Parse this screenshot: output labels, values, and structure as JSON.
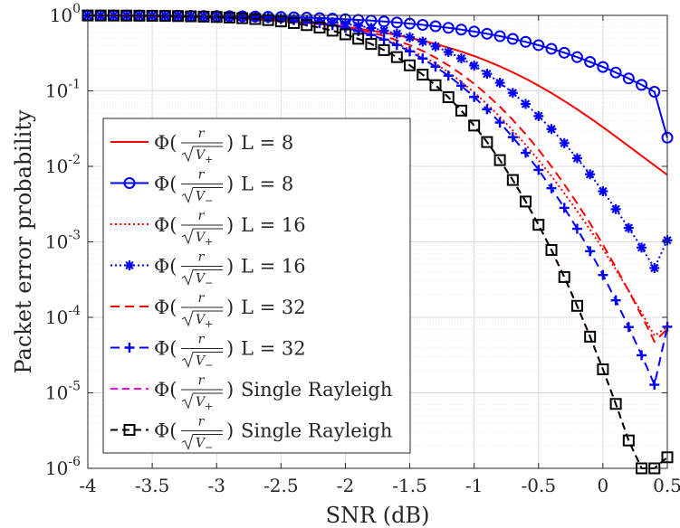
{
  "chart_data": {
    "type": "line",
    "xlabel": "SNR (dB)",
    "ylabel": "Packet error probability",
    "xlim": [
      -4,
      0.5
    ],
    "ylim": [
      1e-06,
      1
    ],
    "yscale": "log",
    "grid": true,
    "legend_position": "bottom-left",
    "x_ticks": [
      -4,
      -3.5,
      -3,
      -2.5,
      -2,
      -1.5,
      -1,
      -0.5,
      0,
      0.5
    ],
    "x_tick_labels": [
      "-4",
      "-3.5",
      "-3",
      "-2.5",
      "-2",
      "-1.5",
      "-1",
      "-0.5",
      "0",
      "0.5"
    ],
    "y_ticks": [
      1e-06,
      1e-05,
      0.0001,
      0.001,
      0.01,
      0.1,
      1
    ],
    "y_tick_labels": [
      {
        "base": "10",
        "exp": "-6"
      },
      {
        "base": "10",
        "exp": "-5"
      },
      {
        "base": "10",
        "exp": "-4"
      },
      {
        "base": "10",
        "exp": "-3"
      },
      {
        "base": "10",
        "exp": "-2"
      },
      {
        "base": "10",
        "exp": "-1"
      },
      {
        "base": "10",
        "exp": "0"
      }
    ],
    "x": [
      -4.0,
      -3.9,
      -3.8,
      -3.7,
      -3.6,
      -3.5,
      -3.4,
      -3.3,
      -3.2,
      -3.1,
      -3.0,
      -2.9,
      -2.8,
      -2.7,
      -2.6,
      -2.5,
      -2.4,
      -2.3,
      -2.2,
      -2.1,
      -2.0,
      -1.9,
      -1.8,
      -1.7,
      -1.6,
      -1.5,
      -1.4,
      -1.3,
      -1.2,
      -1.1,
      -1.0,
      -0.9,
      -0.8,
      -0.7,
      -0.6,
      -0.5,
      -0.4,
      -0.3,
      -0.2,
      -0.1,
      0.0,
      0.1,
      0.2,
      0.3,
      0.4,
      0.5
    ],
    "series": [
      {
        "name": "Φ(r/√V₊) L = 8",
        "label_parts": [
          "+",
          "L = 8"
        ],
        "color": "#ff0000",
        "dash": "",
        "marker": "none",
        "values": [
          0.99,
          0.988,
          0.985,
          0.982,
          0.978,
          0.973,
          0.967,
          0.96,
          0.952,
          0.942,
          0.931,
          0.918,
          0.903,
          0.886,
          0.867,
          0.846,
          0.822,
          0.796,
          0.767,
          0.736,
          0.703,
          0.667,
          0.629,
          0.589,
          0.548,
          0.505,
          0.462,
          0.418,
          0.374,
          0.331,
          0.289,
          0.249,
          0.211,
          0.176,
          0.145,
          0.117,
          0.0935,
          0.0735,
          0.057,
          0.0436,
          0.033,
          0.0248,
          0.0185,
          0.0138,
          0.0103,
          0.0077
        ]
      },
      {
        "name": "Φ(r/√V₋) L = 8",
        "label_parts": [
          "−",
          "L = 8"
        ],
        "color": "#0000ff",
        "dash": "",
        "marker": "circle",
        "values": [
          0.998,
          0.997,
          0.996,
          0.995,
          0.994,
          0.993,
          0.991,
          0.989,
          0.987,
          0.984,
          0.981,
          0.977,
          0.972,
          0.967,
          0.96,
          0.952,
          0.943,
          0.932,
          0.92,
          0.906,
          0.89,
          0.872,
          0.852,
          0.83,
          0.805,
          0.778,
          0.749,
          0.718,
          0.684,
          0.648,
          0.61,
          0.571,
          0.53,
          0.488,
          0.446,
          0.403,
          0.361,
          0.32,
          0.28,
          0.242,
          0.207,
          0.175,
          0.146,
          0.12,
          0.0972,
          0.024
        ]
      },
      {
        "name": "Φ(r/√V₊) L = 16",
        "label_parts": [
          "+",
          "L = 16"
        ],
        "color": "#ff0000",
        "dash": "2,3",
        "marker": "none",
        "values": [
          0.996,
          0.995,
          0.994,
          0.992,
          0.99,
          0.987,
          0.983,
          0.979,
          0.973,
          0.966,
          0.957,
          0.946,
          0.932,
          0.915,
          0.894,
          0.87,
          0.84,
          0.806,
          0.766,
          0.72,
          0.669,
          0.612,
          0.551,
          0.486,
          0.42,
          0.353,
          0.289,
          0.23,
          0.177,
          0.132,
          0.0954,
          0.0668,
          0.0454,
          0.03,
          0.0193,
          0.0121,
          0.0074,
          0.00441,
          0.00256,
          0.00145,
          0.0008,
          0.00043,
          0.000225,
          0.000115,
          5.7e-05,
          7.5e-05
        ]
      },
      {
        "name": "Φ(r/√V₋) L = 16",
        "label_parts": [
          "−",
          "L = 16"
        ],
        "color": "#0000ff",
        "dash": "2,3",
        "marker": "star",
        "values": [
          0.998,
          0.997,
          0.996,
          0.995,
          0.994,
          0.992,
          0.99,
          0.987,
          0.983,
          0.979,
          0.973,
          0.966,
          0.957,
          0.946,
          0.932,
          0.915,
          0.895,
          0.871,
          0.843,
          0.81,
          0.772,
          0.729,
          0.681,
          0.628,
          0.572,
          0.512,
          0.45,
          0.388,
          0.327,
          0.269,
          0.216,
          0.168,
          0.128,
          0.094,
          0.067,
          0.0464,
          0.0312,
          0.0203,
          0.0128,
          0.00785,
          0.00468,
          0.00271,
          0.00153,
          0.00084,
          0.00045,
          0.00105
        ]
      },
      {
        "name": "Φ(r/√V₊) L = 32",
        "label_parts": [
          "+",
          "L = 32"
        ],
        "color": "#ff0000",
        "dash": "10,6",
        "marker": "none",
        "values": [
          0.998,
          0.997,
          0.996,
          0.995,
          0.994,
          0.992,
          0.99,
          0.987,
          0.983,
          0.978,
          0.971,
          0.962,
          0.951,
          0.936,
          0.918,
          0.896,
          0.869,
          0.837,
          0.8,
          0.757,
          0.709,
          0.655,
          0.596,
          0.533,
          0.468,
          0.402,
          0.337,
          0.275,
          0.218,
          0.167,
          0.124,
          0.089,
          0.0617,
          0.0413,
          0.0267,
          0.0166,
          0.00999,
          0.0058,
          0.00325,
          0.00176,
          0.000917,
          0.000461,
          0.000224,
          0.000105,
          4.77e-05,
          7e-05
        ]
      },
      {
        "name": "Φ(r/√V₋) L = 32",
        "label_parts": [
          "−",
          "L = 32"
        ],
        "color": "#0000ff",
        "dash": "10,6",
        "marker": "plus",
        "values": [
          0.998,
          0.997,
          0.996,
          0.995,
          0.994,
          0.992,
          0.99,
          0.987,
          0.983,
          0.978,
          0.971,
          0.962,
          0.95,
          0.935,
          0.916,
          0.893,
          0.865,
          0.83,
          0.789,
          0.74,
          0.683,
          0.62,
          0.55,
          0.478,
          0.405,
          0.334,
          0.268,
          0.209,
          0.159,
          0.117,
          0.083,
          0.057,
          0.038,
          0.0244,
          0.0151,
          0.00898,
          0.00513,
          0.00282,
          0.00149,
          0.000752,
          0.000364,
          0.000168,
          7.44e-05,
          3.15e-05,
          1.28e-05,
          7.5e-05
        ]
      },
      {
        "name": "Φ(r/√V₊) Single Rayleigh",
        "label_parts": [
          "+",
          "Single Rayleigh"
        ],
        "color": "#ff00ff",
        "dash": "8,5",
        "marker": "none",
        "values": [
          0.997,
          0.996,
          0.995,
          0.993,
          0.991,
          0.988,
          0.984,
          0.979,
          0.972,
          0.963,
          0.952,
          0.937,
          0.918,
          0.895,
          0.866,
          0.832,
          0.791,
          0.743,
          0.688,
          0.627,
          0.561,
          0.49,
          0.418,
          0.347,
          0.28,
          0.218,
          0.164,
          0.119,
          0.0825,
          0.0548,
          0.0347,
          0.021,
          0.0121,
          0.0066,
          0.00342,
          0.00168,
          0.00078,
          0.000342,
          0.000142,
          5.55e-05,
          2.05e-05,
          7.13e-06,
          2.34e-06,
          7.24e-07,
          2.11e-07,
          1.4e-06
        ]
      },
      {
        "name": "Φ(r/√V₋) Single Rayleigh",
        "label_parts": [
          "−",
          "Single Rayleigh"
        ],
        "color": "#000000",
        "dash": "8,5",
        "marker": "square",
        "values": [
          0.997,
          0.996,
          0.995,
          0.993,
          0.991,
          0.988,
          0.984,
          0.979,
          0.972,
          0.963,
          0.952,
          0.937,
          0.918,
          0.895,
          0.866,
          0.832,
          0.791,
          0.743,
          0.688,
          0.627,
          0.561,
          0.49,
          0.418,
          0.347,
          0.28,
          0.218,
          0.164,
          0.119,
          0.0825,
          0.0548,
          0.0347,
          0.021,
          0.0121,
          0.0066,
          0.00342,
          0.00168,
          0.00078,
          0.000342,
          0.000142,
          5.55e-05,
          2.05e-05,
          7.13e-06,
          2.34e-06,
          7.24e-07,
          2.11e-07,
          1.4e-06
        ]
      }
    ]
  }
}
